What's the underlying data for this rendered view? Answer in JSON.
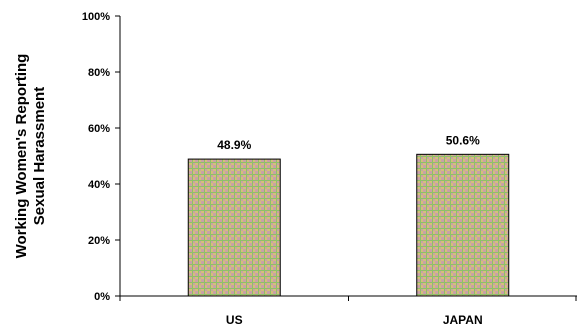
{
  "chart_data": {
    "type": "bar",
    "title": "",
    "xlabel": "",
    "ylabel": "Working Women's Reporting Sexual Harassment",
    "ylabel_lines": [
      "Working Women's Reporting",
      "Sexual Harassment"
    ],
    "categories": [
      "US",
      "JAPAN"
    ],
    "values": [
      48.9,
      50.6
    ],
    "value_labels": [
      "48.9%",
      "50.6%"
    ],
    "ylim": [
      0,
      100
    ],
    "yticks": [
      0,
      20,
      40,
      60,
      80,
      100
    ],
    "ytick_labels": [
      "0%",
      "20%",
      "40%",
      "60%",
      "80%",
      "100%"
    ],
    "grid": false,
    "legend": "none",
    "bar_pattern": "checkered",
    "colors": {
      "bar_fill_a": "#d4c07a",
      "bar_fill_b": "#c9a0a8",
      "bar_grid": "#8fbf6a",
      "bar_edge": "#000000",
      "axis": "#000000",
      "text": "#000000"
    }
  }
}
